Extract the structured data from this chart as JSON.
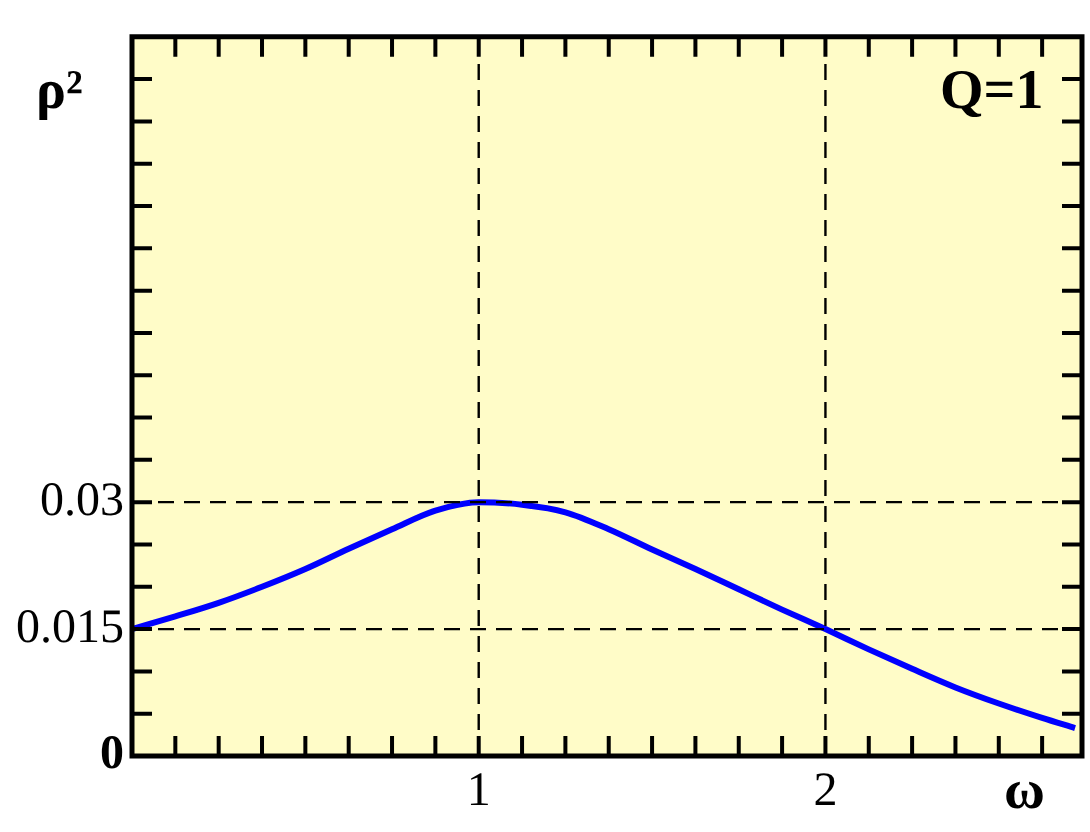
{
  "chart_data": {
    "type": "line",
    "xlabel": "ω",
    "ylabel": "ρ²",
    "annotations": [
      "Q=1"
    ],
    "x": [
      0,
      0.125,
      0.25,
      0.375,
      0.5,
      0.625,
      0.75,
      0.875,
      1,
      1.125,
      1.25,
      1.375,
      1.5,
      1.625,
      1.75,
      1.875,
      2,
      2.125,
      2.25,
      2.375,
      2.5,
      2.625,
      2.72
    ],
    "series": [
      {
        "color": "#0000ff",
        "values": [
          0.015,
          0.0165,
          0.0181,
          0.02,
          0.0221,
          0.0245,
          0.0268,
          0.029,
          0.03,
          0.0297,
          0.0288,
          0.0268,
          0.0244,
          0.0221,
          0.0197,
          0.0173,
          0.015,
          0.0126,
          0.0103,
          0.0081,
          0.0062,
          0.0045,
          0.0033
        ]
      }
    ],
    "xlim": [
      0,
      2.74
    ],
    "xticks": [
      {
        "value": 0,
        "label": null
      },
      {
        "value": 0.125,
        "label": null
      },
      {
        "value": 0.25,
        "label": null
      },
      {
        "value": 0.375,
        "label": null
      },
      {
        "value": 0.5,
        "label": null
      },
      {
        "value": 0.625,
        "label": null
      },
      {
        "value": 0.75,
        "label": null
      },
      {
        "value": 0.875,
        "label": null
      },
      1,
      {
        "value": 1.125,
        "label": null
      },
      {
        "value": 1.25,
        "label": null
      },
      {
        "value": 1.375,
        "label": null
      },
      {
        "value": 1.5,
        "label": null
      },
      {
        "value": 1.625,
        "label": null
      },
      {
        "value": 1.75,
        "label": null
      },
      {
        "value": 1.875,
        "label": null
      },
      2,
      {
        "value": 2.125,
        "label": null
      },
      {
        "value": 2.25,
        "label": null
      },
      {
        "value": 2.375,
        "label": null
      },
      {
        "value": 2.5,
        "label": null
      },
      {
        "value": 2.625,
        "label": null
      }
    ],
    "ylim": [
      0,
      0.085
    ],
    "yticks": [
      0,
      {
        "value": 0.005,
        "label": null
      },
      {
        "value": 0.01,
        "label": null
      },
      0.015,
      {
        "value": 0.02,
        "label": null
      },
      {
        "value": 0.025,
        "label": null
      },
      0.03,
      {
        "value": 0.035,
        "label": null
      },
      {
        "value": 0.04,
        "label": null
      },
      {
        "value": 0.045,
        "label": null
      },
      {
        "value": 0.05,
        "label": null
      },
      {
        "value": 0.055,
        "label": null
      },
      {
        "value": 0.06,
        "label": null
      },
      {
        "value": 0.065,
        "label": null
      },
      {
        "value": 0.07,
        "label": null
      },
      {
        "value": 0.075,
        "label": null
      },
      {
        "value": 0.08,
        "label": null
      }
    ],
    "ref_lines": [
      {
        "axis": "y",
        "value": 0.03,
        "line_style": "dashed"
      },
      {
        "axis": "y",
        "value": 0.015,
        "line_style": "dashed"
      },
      {
        "axis": "x",
        "value": 1,
        "line_style": "dashed"
      },
      {
        "axis": "x",
        "value": 2,
        "line_style": "dashed"
      }
    ],
    "grid": false,
    "legend": false,
    "marker": "none",
    "line_style": "solid"
  }
}
